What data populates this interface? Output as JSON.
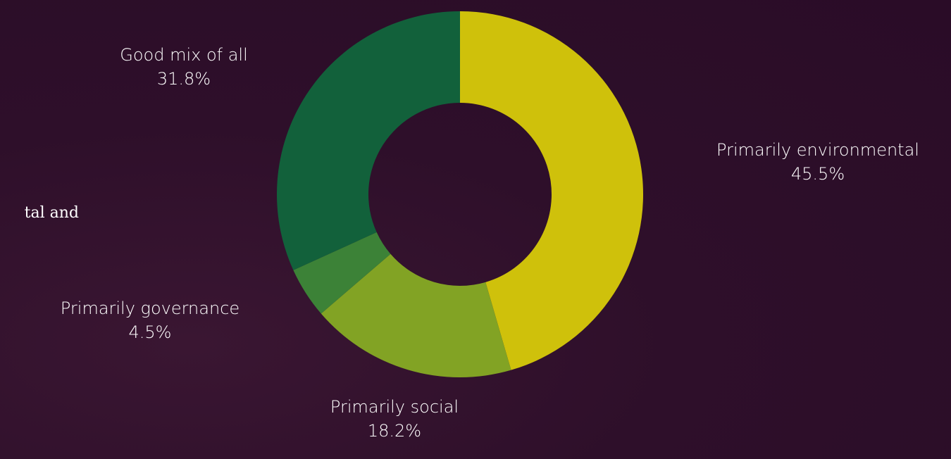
{
  "background_fragment": "tal and",
  "chart_data": {
    "type": "pie",
    "donut": true,
    "title": "",
    "labels": [
      "Primarily environmental",
      "Primarily social",
      "Primarily governance",
      "Good mix of all"
    ],
    "values": [
      45.5,
      18.2,
      4.5,
      31.8
    ],
    "value_labels": [
      "45.5%",
      "18.2%",
      "4.5%",
      "31.8%"
    ],
    "colors": [
      "#cfc10b",
      "#82a324",
      "#3c8237",
      "#12613b"
    ],
    "start": "top",
    "direction": "clockwise"
  }
}
